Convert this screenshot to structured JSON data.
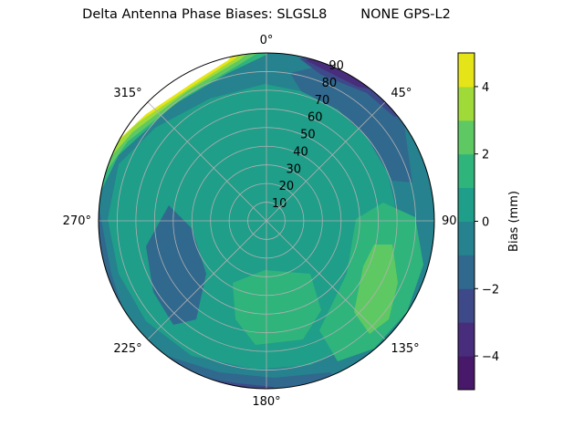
{
  "chart_data": {
    "type": "contour",
    "projection": "polar",
    "title": "Delta Antenna Phase Biases: SLGSL8        NONE GPS-L2",
    "theta_zero": "top",
    "theta_direction": "clockwise",
    "theta_ticks": [
      "0°",
      "45°",
      "90°",
      "135°",
      "180°",
      "225°",
      "270°",
      "315°"
    ],
    "r_ticks": [
      "10",
      "20",
      "30",
      "40",
      "50",
      "60",
      "70",
      "80",
      "90"
    ],
    "r_range": [
      0,
      90
    ],
    "grid": true,
    "colorbar": {
      "label": "Bias (mm)",
      "levels": [
        -5,
        -4,
        -3,
        -2,
        -1,
        0,
        1,
        2,
        3,
        4,
        5
      ],
      "ticks": [
        "−4",
        "−2",
        "0",
        "2",
        "4"
      ],
      "tick_values": [
        -4,
        -2,
        0,
        2,
        4
      ],
      "colormap": "viridis",
      "colors": [
        "#48186a",
        "#472d7b",
        "#3e4989",
        "#31688e",
        "#26828e",
        "#1f9e89",
        "#2fb47c",
        "#5ec962",
        "#a0da39",
        "#e5e419"
      ]
    },
    "regions_description_levels": {
      "background": -1,
      "center": 0,
      "top_left_edge": [
        1,
        2,
        3,
        4
      ],
      "top_right_edge": [
        -2,
        -3,
        -4
      ],
      "left_lobe": -2,
      "bottom_right": [
        1,
        2
      ]
    }
  }
}
